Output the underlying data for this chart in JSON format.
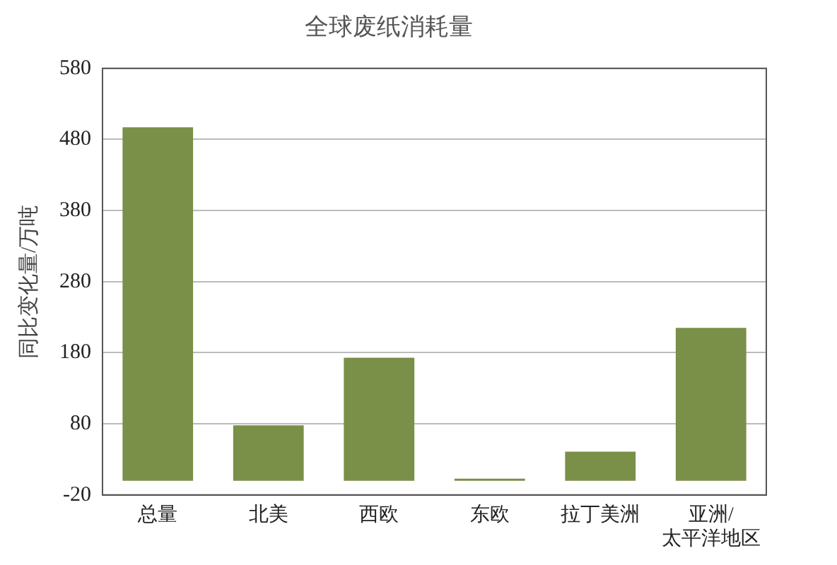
{
  "chart_data": {
    "type": "bar",
    "title": "全球废纸消耗量",
    "ylabel": "同比变化量/万吨",
    "categories": [
      "总量",
      "北美",
      "西欧",
      "东欧",
      "拉丁美洲",
      "亚洲/太平洋地区"
    ],
    "values": [
      497,
      78,
      173,
      3,
      41,
      215
    ],
    "color": "#7a8f48",
    "ylim": [
      -20,
      580
    ],
    "yticks": [
      -20,
      80,
      180,
      280,
      380,
      480,
      580
    ],
    "grid": "y",
    "legend": false
  }
}
